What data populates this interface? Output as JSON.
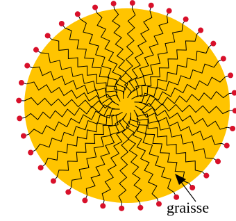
{
  "label": "graisse"
}
